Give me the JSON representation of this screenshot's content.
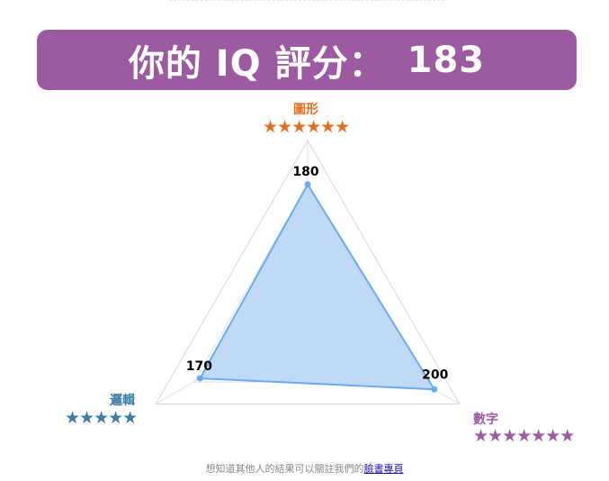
{
  "header": {
    "title": "你的 IQ 評分：",
    "score": "183",
    "background": "#9c5aa0"
  },
  "chart_data": {
    "type": "radar",
    "title": "",
    "axes": [
      {
        "name": "圖形",
        "value": 180,
        "stars": "★★★★★★",
        "color": "#e07020"
      },
      {
        "name": "數字",
        "value": 200,
        "stars": "★★★★★★★",
        "color": "#9c5aa0"
      },
      {
        "name": "邏輯",
        "value": 170,
        "stars": "★★★★★",
        "color": "#3a7ca5"
      }
    ],
    "range": [
      0,
      240
    ],
    "grid_levels": 4,
    "fill_color": "#bcd7f5",
    "line_color": "#6aaaf0"
  },
  "footer": {
    "text": "想知道其他人的結果可以關註我們的",
    "link": "臉書專頁"
  }
}
